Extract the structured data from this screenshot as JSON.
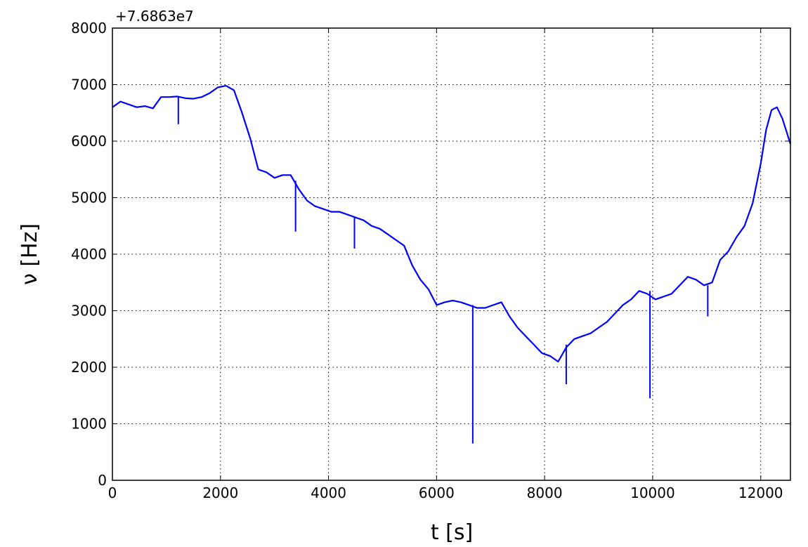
{
  "chart_data": {
    "type": "line",
    "title": "",
    "xlabel": "t [s]",
    "ylabel": "ν [Hz]",
    "y_offset_label": "+7.6863e7",
    "xlim": [
      0,
      12550
    ],
    "ylim": [
      0,
      8000
    ],
    "grid": true,
    "grid_style": "dotted",
    "line_color": "#0000ff",
    "x_ticks": [
      0,
      2000,
      4000,
      6000,
      8000,
      10000,
      12000
    ],
    "x_tick_labels": [
      "0",
      "2000",
      "4000",
      "6000",
      "8000",
      "10000",
      "12000"
    ],
    "y_ticks": [
      0,
      1000,
      2000,
      3000,
      4000,
      5000,
      6000,
      7000,
      8000
    ],
    "y_tick_labels": [
      "0",
      "1000",
      "2000",
      "3000",
      "4000",
      "5000",
      "6000",
      "7000",
      "8000"
    ],
    "series": [
      {
        "x": [
          0,
          150,
          300,
          450,
          600,
          750,
          900,
          1050,
          1200,
          1350,
          1500,
          1650,
          1800,
          1950,
          2100,
          2250,
          2400,
          2550,
          2700,
          2850,
          3000,
          3150,
          3300,
          3450,
          3600,
          3750,
          3900,
          4050,
          4200,
          4350,
          4500,
          4650,
          4800,
          4950,
          5100,
          5250,
          5400,
          5550,
          5700,
          5850,
          6000,
          6150,
          6300,
          6450,
          6600,
          6750,
          6900,
          7050,
          7200,
          7350,
          7500,
          7650,
          7800,
          7950,
          8100,
          8250,
          8400,
          8550,
          8700,
          8850,
          9000,
          9150,
          9300,
          9450,
          9600,
          9750,
          9900,
          10050,
          10200,
          10350,
          10500,
          10650,
          10800,
          10950,
          11100,
          11250,
          11400,
          11550,
          11700,
          11850,
          12000,
          12100,
          12200,
          12300,
          12400,
          12500,
          12550
        ],
        "y": [
          6600,
          6700,
          6650,
          6600,
          6620,
          6580,
          6780,
          6780,
          6790,
          6760,
          6750,
          6780,
          6850,
          6950,
          6980,
          6900,
          6500,
          6050,
          5500,
          5450,
          5350,
          5400,
          5400,
          5150,
          4950,
          4850,
          4800,
          4750,
          4750,
          4700,
          4650,
          4600,
          4500,
          4450,
          4350,
          4250,
          4150,
          3800,
          3550,
          3380,
          3100,
          3150,
          3180,
          3150,
          3100,
          3050,
          3050,
          3100,
          3150,
          2900,
          2700,
          2550,
          2400,
          2250,
          2200,
          2100,
          2350,
          2500,
          2550,
          2600,
          2700,
          2800,
          2950,
          3100,
          3200,
          3350,
          3300,
          3200,
          3250,
          3300,
          3450,
          3600,
          3550,
          3450,
          3500,
          3900,
          4050,
          4300,
          4500,
          4900,
          5600,
          6200,
          6550,
          6600,
          6400,
          6100,
          5950
        ]
      }
    ],
    "spikes": [
      {
        "t": 1220,
        "baseline": 6780,
        "min": 6300
      },
      {
        "t": 3390,
        "baseline": 5300,
        "min": 4400
      },
      {
        "t": 4480,
        "baseline": 4650,
        "min": 4100
      },
      {
        "t": 6670,
        "baseline": 3100,
        "min": 650
      },
      {
        "t": 8400,
        "baseline": 2400,
        "min": 1700
      },
      {
        "t": 9950,
        "baseline": 3350,
        "min": 1450
      },
      {
        "t": 11020,
        "baseline": 3450,
        "min": 2900
      }
    ]
  }
}
